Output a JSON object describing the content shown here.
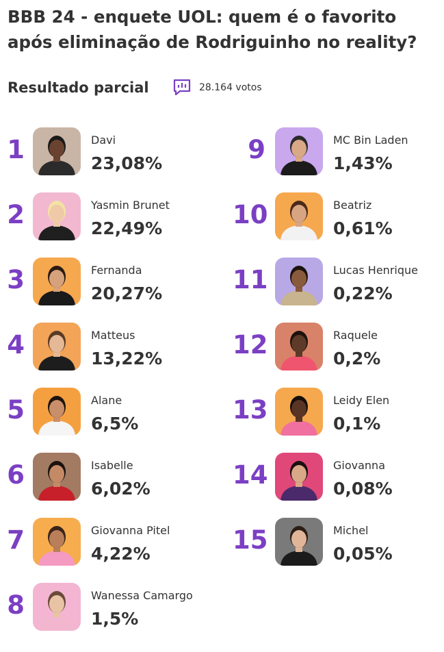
{
  "title": "BBB 24 - enquete UOL: quem é o  favorito após eliminação de Rodriguinho no reality?",
  "subheader": {
    "label": "Resultado parcial",
    "icon": "bar-chart-icon",
    "votes": "28.164 votos"
  },
  "colors": {
    "accent": "#7b3fc4",
    "text": "#333333"
  },
  "left_column": [
    {
      "rank": "1",
      "name": "Davi",
      "percent": "23,08%",
      "bg": "#c9b5a6",
      "skin": "#6a4330",
      "shirt": "#2b2b2b",
      "hair": "#1a1a1a"
    },
    {
      "rank": "2",
      "name": "Yasmin Brunet",
      "percent": "22,49%",
      "bg": "#f2b8d0",
      "skin": "#f0c9a8",
      "shirt": "#1f1f1f",
      "hair": "#f3e2a4"
    },
    {
      "rank": "3",
      "name": "Fernanda",
      "percent": "20,27%",
      "bg": "#f6a84e",
      "skin": "#d6a27c",
      "shirt": "#1a1a1a",
      "hair": "#2a1a12"
    },
    {
      "rank": "4",
      "name": "Matteus",
      "percent": "13,22%",
      "bg": "#f3a457",
      "skin": "#e5b896",
      "shirt": "#1d1d1d",
      "hair": "#5a3a24"
    },
    {
      "rank": "5",
      "name": "Alane",
      "percent": "6,5%",
      "bg": "#f5a040",
      "skin": "#c98f6a",
      "shirt": "#f5f5f5",
      "hair": "#1f130d"
    },
    {
      "rank": "6",
      "name": "Isabelle",
      "percent": "6,02%",
      "bg": "#a37a62",
      "skin": "#c48a66",
      "shirt": "#c7202a",
      "hair": "#1a1210"
    },
    {
      "rank": "7",
      "name": "Giovanna Pitel",
      "percent": "4,22%",
      "bg": "#f7ac4e",
      "skin": "#b97e5a",
      "shirt": "#f59ac0",
      "hair": "#3a2418"
    },
    {
      "rank": "8",
      "name": "Wanessa Camargo",
      "percent": "1,5%",
      "bg": "#f4b5d2",
      "skin": "#e9c4a4",
      "shirt": "#f2b6cf",
      "hair": "#6b4a3a"
    }
  ],
  "right_column": [
    {
      "rank": "9",
      "name": "MC Bin Laden",
      "percent": "1,43%",
      "bg": "#c9a8ee",
      "skin": "#d9a887",
      "shirt": "#1b1b1b",
      "hair": "#2a2a2a"
    },
    {
      "rank": "10",
      "name": "Beatriz",
      "percent": "0,61%",
      "bg": "#f6a84e",
      "skin": "#d8a582",
      "shirt": "#f2f2f2",
      "hair": "#4a2a1a"
    },
    {
      "rank": "11",
      "name": "Lucas Henrique",
      "percent": "0,22%",
      "bg": "#b9a8e6",
      "skin": "#8a5a3c",
      "shirt": "#c8b48e",
      "hair": "#1a120c"
    },
    {
      "rank": "12",
      "name": "Raquele",
      "percent": "0,2%",
      "bg": "#d9826a",
      "skin": "#5e3a28",
      "shirt": "#f0556f",
      "hair": "#1d120c"
    },
    {
      "rank": "13",
      "name": "Leidy Elen",
      "percent": "0,1%",
      "bg": "#f5a84e",
      "skin": "#5a3424",
      "shirt": "#f070a0",
      "hair": "#140c08"
    },
    {
      "rank": "14",
      "name": "Giovanna",
      "percent": "0,08%",
      "bg": "#e0487a",
      "skin": "#d9a887",
      "shirt": "#4a2a6a",
      "hair": "#1a1010"
    },
    {
      "rank": "15",
      "name": "Michel",
      "percent": "0,05%",
      "bg": "#7a7a7a",
      "skin": "#e0b598",
      "shirt": "#1b1b1b",
      "hair": "#2a1e16"
    }
  ]
}
